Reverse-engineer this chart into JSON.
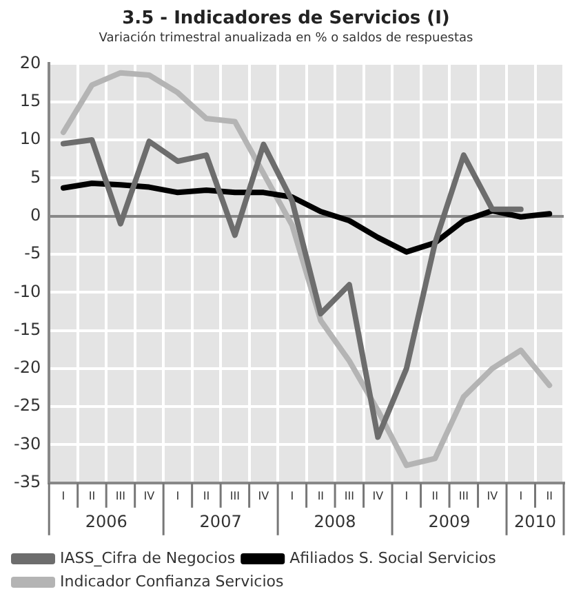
{
  "chart_data": {
    "type": "line",
    "title": "3.5 - Indicadores de Servicios (I)",
    "subtitle": "Variación trimestral anualizada en % o saldos de respuestas",
    "categories": [
      "I",
      "II",
      "III",
      "IV",
      "I",
      "II",
      "III",
      "IV",
      "I",
      "II",
      "III",
      "IV",
      "I",
      "II",
      "III",
      "IV",
      "I",
      "II"
    ],
    "annotations": [
      "2006",
      "2007",
      "2008",
      "2009",
      "2010"
    ],
    "series": [
      {
        "name": "IASS_Cifra de Negocios",
        "color": "#6d6d6d",
        "values": [
          9.5,
          10,
          -1,
          9.8,
          7.2,
          8,
          -2.5,
          9.4,
          2,
          -12.8,
          -9,
          -29,
          -20,
          -3.5,
          8,
          0.9,
          0.9,
          null
        ]
      },
      {
        "name": "Afiliados S. Social Servicios",
        "color": "#000000",
        "values": [
          3.7,
          4.3,
          4.1,
          3.8,
          3.1,
          3.4,
          3.1,
          3.1,
          2.5,
          0.6,
          -0.6,
          -2.8,
          -4.7,
          -3.5,
          -0.6,
          0.7,
          -0.1,
          0.3
        ]
      },
      {
        "name": "Indicador Confianza Servicios",
        "color": "#b4b4b4",
        "values": [
          11,
          17.2,
          18.8,
          18.5,
          16.2,
          12.8,
          12.4,
          5.6,
          -1.2,
          -13.7,
          -19,
          -25.5,
          -32.7,
          -31.8,
          -23.7,
          -20,
          -17.6,
          -22.2
        ]
      }
    ],
    "ylim": [
      -35,
      20
    ],
    "yticks": [
      -35,
      -30,
      -25,
      -20,
      -15,
      -10,
      -5,
      0,
      5,
      10,
      15,
      20
    ],
    "grid": true,
    "legend": "bottom",
    "marker": "none",
    "line_style": "solid"
  }
}
